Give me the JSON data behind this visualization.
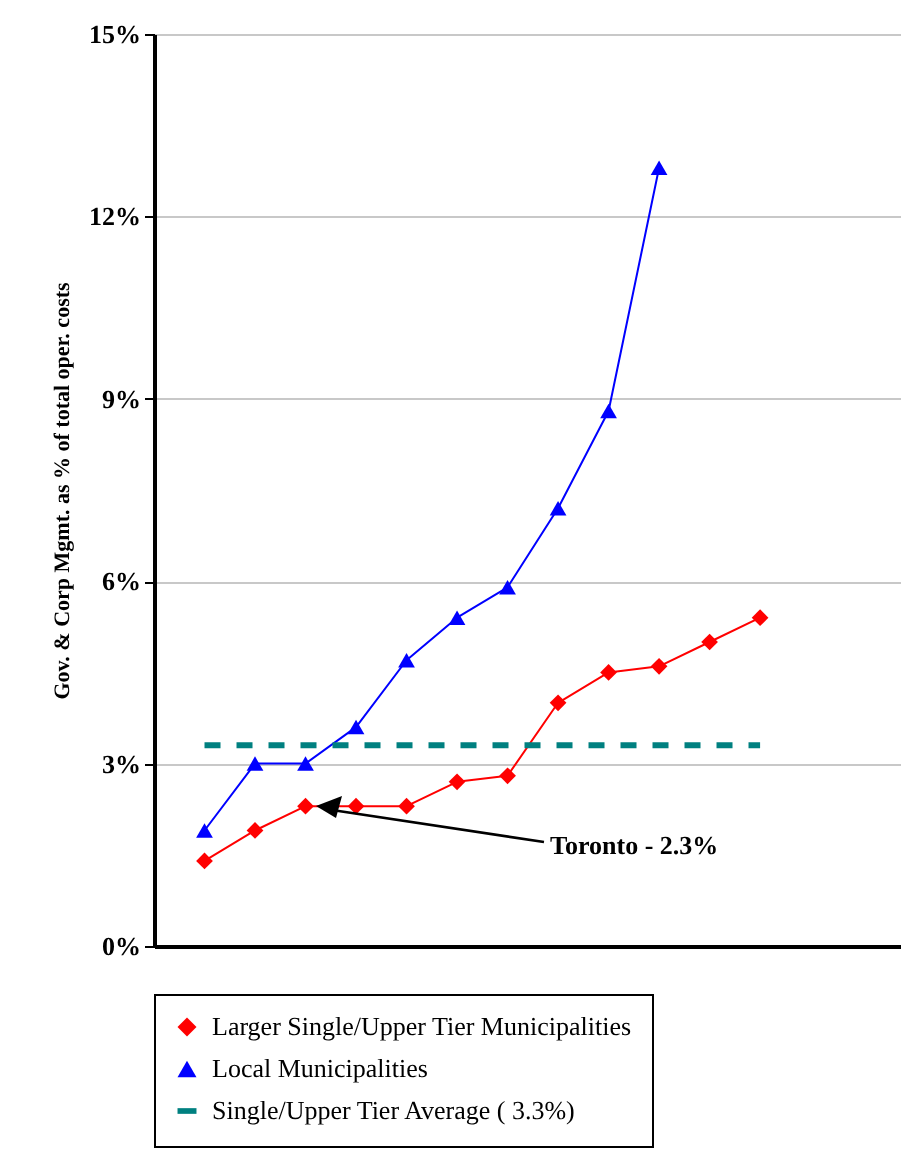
{
  "chart_data": {
    "type": "line",
    "ylabel": "Gov. & Corp Mgmt. as % of total oper. costs",
    "categories": [
      null,
      null,
      null,
      null,
      null,
      null,
      null,
      null,
      null,
      null,
      null,
      null
    ],
    "series": [
      {
        "name": "Larger Single/Upper Tier Municipalities",
        "color": "#ff0000",
        "marker": "diamond",
        "line_style": "solid",
        "values": [
          1.4,
          1.9,
          2.3,
          2.3,
          2.3,
          2.7,
          2.8,
          4.0,
          4.5,
          4.6,
          5.0,
          5.4
        ]
      },
      {
        "name": "Local Municipalities",
        "color": "#0000ff",
        "marker": "triangle",
        "line_style": "solid",
        "values": [
          1.9,
          3.0,
          3.0,
          3.6,
          4.7,
          5.4,
          5.9,
          7.2,
          8.8,
          12.8,
          null,
          null
        ]
      },
      {
        "name": "Single/Upper Tier Average ( 3.3%)",
        "color": "#008080",
        "marker": "none",
        "line_style": "dashed",
        "values": [
          3.3,
          3.3,
          3.3,
          3.3,
          3.3,
          3.3,
          3.3,
          3.3,
          3.3,
          3.3,
          3.3,
          3.3
        ]
      }
    ],
    "ylim": [
      0,
      15
    ],
    "yticks": [
      {
        "value": 0,
        "label": "0%"
      },
      {
        "value": 3,
        "label": "3%"
      },
      {
        "value": 6,
        "label": "6%"
      },
      {
        "value": 9,
        "label": "9%"
      },
      {
        "value": 12,
        "label": "12%"
      },
      {
        "value": 15,
        "label": "15%"
      }
    ],
    "grid": "y",
    "legend": "bottom",
    "annotations": [
      "Toronto - 2.3%"
    ]
  }
}
